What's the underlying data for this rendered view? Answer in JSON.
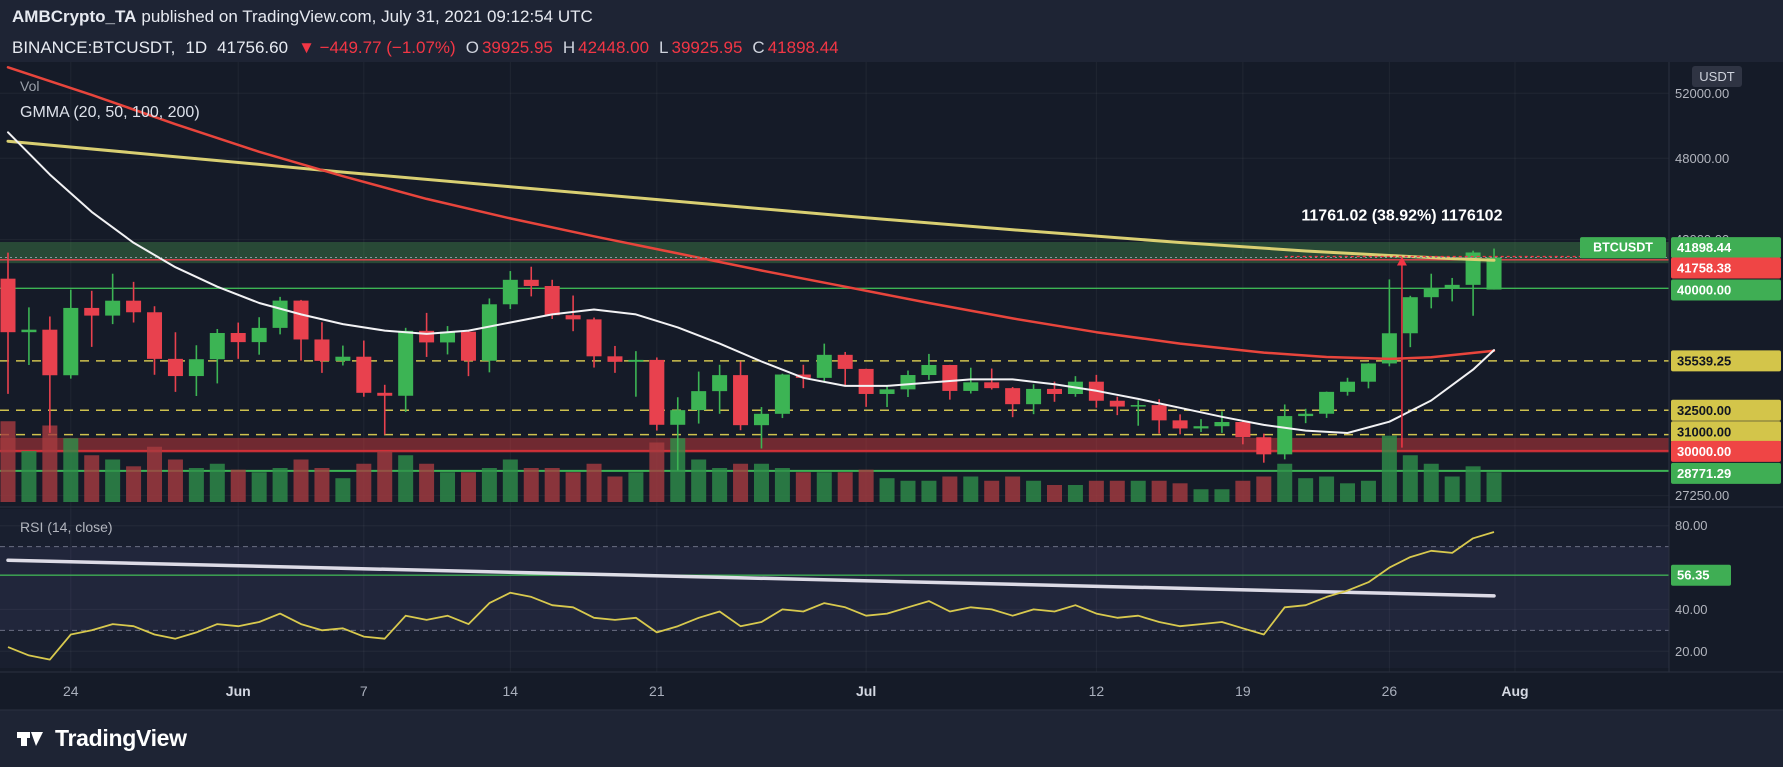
{
  "header": {
    "attribution": {
      "author": "AMBCrypto_TA",
      "rest": "published on TradingView.com, July 31, 2021 09:12:54 UTC"
    },
    "symbol_line": {
      "symbol": "BINANCE:BTCUSDT,",
      "interval": "1D",
      "last_price": "41756.60",
      "change": "▼ −449.77 (−1.07%)",
      "ohlc": [
        {
          "label": "O",
          "value": "39925.95"
        },
        {
          "label": "H",
          "value": "42448.00"
        },
        {
          "label": "L",
          "value": "39925.95"
        },
        {
          "label": "C",
          "value": "41898.44"
        }
      ]
    }
  },
  "overlays": {
    "volume_label": "Vol",
    "gmma_label": "GMMA (20, 50, 100, 200)",
    "rsi_label": "RSI (14, close)"
  },
  "axis": {
    "currency_chip": "USDT",
    "symbol_chip": "BTCUSDT",
    "plain_labels": [
      {
        "text": "52000.00",
        "price": 52000
      },
      {
        "text": "48000.00",
        "price": 48000
      },
      {
        "text": "43000.00",
        "price": 43000
      },
      {
        "text": "27250.00",
        "price": 27250
      }
    ],
    "badges": [
      {
        "text": "41898.44",
        "price": 41898.44,
        "bg": "green",
        "symbol_chip": true
      },
      {
        "text": "41758.38",
        "price": 41758.38,
        "bg": "red"
      },
      {
        "text": "40000.00",
        "price": 40000,
        "bg": "green"
      },
      {
        "text": "35539.25",
        "price": 35539.25,
        "bg": "yellow"
      },
      {
        "text": "32500.00",
        "price": 32500,
        "bg": "yellow"
      },
      {
        "text": "31000.00",
        "price": 31000,
        "bg": "yellow"
      },
      {
        "text": "30000.00",
        "price": 30000,
        "bg": "red"
      },
      {
        "text": "28771.29",
        "price": 28771.29,
        "bg": "green"
      }
    ],
    "rsi_plain": [
      {
        "text": "80.00",
        "value": 80
      },
      {
        "text": "40.00",
        "value": 40
      },
      {
        "text": "20.00",
        "value": 20
      }
    ],
    "rsi_badge": {
      "text": "56.35",
      "value": 56.35,
      "bg": "green"
    }
  },
  "x_axis": {
    "labels": [
      {
        "text": "24",
        "i": 3,
        "major": false
      },
      {
        "text": "Jun",
        "i": 11,
        "major": true
      },
      {
        "text": "7",
        "i": 17,
        "major": false
      },
      {
        "text": "14",
        "i": 24,
        "major": false
      },
      {
        "text": "21",
        "i": 31,
        "major": false
      },
      {
        "text": "Jul",
        "i": 41,
        "major": true
      },
      {
        "text": "12",
        "i": 52,
        "major": false
      },
      {
        "text": "19",
        "i": 59,
        "major": false
      },
      {
        "text": "26",
        "i": 66,
        "major": false
      },
      {
        "text": "Aug",
        "i": 72,
        "major": true
      }
    ]
  },
  "footer": {
    "brand": "TradingView"
  },
  "colors": {
    "bg_chart": "#151b28",
    "bg_frame": "#1e2434",
    "grid": "rgba(255,255,255,0.05)",
    "separator": "#2a3040",
    "axis_text": "#b2b5be",
    "candle_up": "#3cb454",
    "candle_down": "#e8414e",
    "vol_up": "#2e8e4a",
    "vol_down": "#a63b40",
    "ma_long": "#d9cf72",
    "ma_mid": "#e8453c",
    "ma_short": "#f2f2f4",
    "badge_green": "#3fae54",
    "badge_red": "#ef4545",
    "badge_yellow": "#d3c54a",
    "measure_red": "#f23645",
    "rsi_line": "#d8c94e",
    "rsi_trend": "#e8e5f0",
    "last_price_dotted": "#8b93a0"
  },
  "chart_data": {
    "type": "candlestick",
    "symbol": "BTCUSDT",
    "exchange": "BINANCE",
    "interval": "1D",
    "start_date": "2021-05-21",
    "price_axis": {
      "max": 53800,
      "min": 26674
    },
    "rsi_axis": {
      "max": 88,
      "min": 12
    },
    "grid_prices": [
      52000,
      48000,
      43000,
      27250
    ],
    "candles": [
      [
        40596,
        42199,
        33513,
        37304,
        95
      ],
      [
        37304,
        38831,
        35287,
        37458,
        60
      ],
      [
        37458,
        38270,
        31111,
        34655,
        90
      ],
      [
        34655,
        39920,
        34445,
        38796,
        75
      ],
      [
        38796,
        39850,
        36400,
        38324,
        55
      ],
      [
        38324,
        40900,
        37800,
        39241,
        50
      ],
      [
        39241,
        40400,
        37900,
        38529,
        42
      ],
      [
        38529,
        38900,
        34684,
        35663,
        65
      ],
      [
        35663,
        37300,
        33632,
        34605,
        50
      ],
      [
        34605,
        36500,
        33379,
        35641,
        40
      ],
      [
        35641,
        37499,
        34153,
        37253,
        45
      ],
      [
        37253,
        37895,
        35666,
        36693,
        38
      ],
      [
        36693,
        38225,
        35920,
        37568,
        35
      ],
      [
        37568,
        39476,
        37170,
        39246,
        40
      ],
      [
        39246,
        39289,
        35555,
        36856,
        50
      ],
      [
        36856,
        37917,
        34800,
        35538,
        40
      ],
      [
        35538,
        36480,
        35255,
        35795,
        28
      ],
      [
        35795,
        36790,
        33333,
        33575,
        45
      ],
      [
        33575,
        34068,
        31000,
        33393,
        60
      ],
      [
        33393,
        37572,
        32396,
        37388,
        55
      ],
      [
        37388,
        38491,
        35782,
        36675,
        45
      ],
      [
        36675,
        37680,
        35936,
        37332,
        35
      ],
      [
        37332,
        37445,
        34600,
        35546,
        35
      ],
      [
        35546,
        39380,
        34833,
        39020,
        40
      ],
      [
        39020,
        41064,
        38730,
        40525,
        50
      ],
      [
        40525,
        41330,
        39506,
        40144,
        40
      ],
      [
        40144,
        40527,
        38116,
        38349,
        40
      ],
      [
        38349,
        39559,
        37365,
        38092,
        35
      ],
      [
        38092,
        38202,
        35129,
        35819,
        45
      ],
      [
        35819,
        36457,
        34803,
        35483,
        30
      ],
      [
        35483,
        36137,
        33336,
        35600,
        35
      ],
      [
        35600,
        35750,
        31251,
        31608,
        70
      ],
      [
        31608,
        33298,
        28805,
        32509,
        75
      ],
      [
        32509,
        34881,
        31683,
        33678,
        50
      ],
      [
        33678,
        35298,
        32286,
        34663,
        40
      ],
      [
        34663,
        35500,
        31275,
        31584,
        45
      ],
      [
        31584,
        32700,
        30151,
        32283,
        45
      ],
      [
        32283,
        34749,
        32022,
        34700,
        40
      ],
      [
        34700,
        35301,
        33862,
        34494,
        35
      ],
      [
        34494,
        36600,
        34225,
        35911,
        35
      ],
      [
        35911,
        36088,
        34049,
        35045,
        35
      ],
      [
        35045,
        35057,
        32711,
        33504,
        38
      ],
      [
        33504,
        33977,
        32699,
        33786,
        28
      ],
      [
        33786,
        34945,
        33316,
        34669,
        25
      ],
      [
        34669,
        35967,
        34370,
        35286,
        25
      ],
      [
        35286,
        35293,
        33155,
        33690,
        30
      ],
      [
        33690,
        35119,
        33532,
        34220,
        30
      ],
      [
        34220,
        35067,
        33777,
        33862,
        25
      ],
      [
        33862,
        33929,
        32077,
        32875,
        30
      ],
      [
        32875,
        34100,
        32261,
        33815,
        25
      ],
      [
        33815,
        34262,
        33022,
        33502,
        20
      ],
      [
        33502,
        34600,
        33333,
        34259,
        20
      ],
      [
        34259,
        34678,
        32658,
        33086,
        25
      ],
      [
        33086,
        33340,
        32202,
        32729,
        25
      ],
      [
        32729,
        33114,
        31550,
        32820,
        25
      ],
      [
        32820,
        33185,
        31064,
        31880,
        25
      ],
      [
        31880,
        32249,
        31020,
        31383,
        22
      ],
      [
        31383,
        31955,
        31164,
        31520,
        15
      ],
      [
        31520,
        32435,
        31108,
        31778,
        15
      ],
      [
        31778,
        31890,
        30407,
        30839,
        25
      ],
      [
        30839,
        31063,
        29278,
        29790,
        30
      ],
      [
        29790,
        32858,
        29482,
        32144,
        45
      ],
      [
        32144,
        32591,
        31708,
        32287,
        28
      ],
      [
        32287,
        33650,
        32030,
        33634,
        30
      ],
      [
        33634,
        34500,
        33401,
        34258,
        22
      ],
      [
        34258,
        35398,
        33851,
        35381,
        25
      ],
      [
        35381,
        40550,
        35205,
        37237,
        78
      ],
      [
        37237,
        39542,
        36383,
        39457,
        55
      ],
      [
        39457,
        40900,
        38772,
        40019,
        45
      ],
      [
        40019,
        40640,
        39200,
        40216,
        30
      ],
      [
        40216,
        42316,
        38313,
        42206,
        42
      ],
      [
        39926,
        42448,
        39926,
        41898,
        35
      ]
    ],
    "ma_lines": [
      {
        "name": "gmma-long",
        "color_key": "ma_long",
        "width": 3,
        "points": [
          [
            0,
            49050
          ],
          [
            8,
            48100
          ],
          [
            16,
            47150
          ],
          [
            24,
            46250
          ],
          [
            32,
            45350
          ],
          [
            40,
            44450
          ],
          [
            48,
            43600
          ],
          [
            56,
            42820
          ],
          [
            62,
            42300
          ],
          [
            66,
            42020
          ],
          [
            69,
            41830
          ],
          [
            71,
            41730
          ]
        ]
      },
      {
        "name": "gmma-mid",
        "color_key": "ma_mid",
        "width": 2.5,
        "points": [
          [
            0,
            53600
          ],
          [
            4,
            51900
          ],
          [
            8,
            50100
          ],
          [
            12,
            48400
          ],
          [
            16,
            46900
          ],
          [
            20,
            45500
          ],
          [
            24,
            44300
          ],
          [
            28,
            43200
          ],
          [
            32,
            42150
          ],
          [
            36,
            41100
          ],
          [
            40,
            40100
          ],
          [
            44,
            39100
          ],
          [
            48,
            38150
          ],
          [
            52,
            37300
          ],
          [
            56,
            36600
          ],
          [
            60,
            36050
          ],
          [
            63,
            35780
          ],
          [
            66,
            35660
          ],
          [
            68,
            35760
          ],
          [
            71,
            36160
          ]
        ]
      },
      {
        "name": "gmma-short",
        "color_key": "ma_short",
        "width": 2,
        "points": [
          [
            0,
            49600
          ],
          [
            2,
            47000
          ],
          [
            4,
            44700
          ],
          [
            6,
            42800
          ],
          [
            8,
            41300
          ],
          [
            10,
            40100
          ],
          [
            12,
            39100
          ],
          [
            14,
            38400
          ],
          [
            16,
            37800
          ],
          [
            18,
            37400
          ],
          [
            20,
            37200
          ],
          [
            22,
            37400
          ],
          [
            24,
            37900
          ],
          [
            26,
            38400
          ],
          [
            28,
            38700
          ],
          [
            30,
            38400
          ],
          [
            32,
            37600
          ],
          [
            34,
            36600
          ],
          [
            36,
            35500
          ],
          [
            38,
            34500
          ],
          [
            40,
            34000
          ],
          [
            42,
            34000
          ],
          [
            44,
            34200
          ],
          [
            46,
            34400
          ],
          [
            48,
            34400
          ],
          [
            50,
            34100
          ],
          [
            52,
            33700
          ],
          [
            54,
            33200
          ],
          [
            56,
            32650
          ],
          [
            58,
            32100
          ],
          [
            60,
            31600
          ],
          [
            62,
            31250
          ],
          [
            64,
            31100
          ],
          [
            66,
            31800
          ],
          [
            68,
            33100
          ],
          [
            70,
            35000
          ],
          [
            71,
            36200
          ]
        ]
      }
    ],
    "levels": [
      {
        "type": "band",
        "from": 42850,
        "to": 41550,
        "color": "rgba(76,160,80,0.35)"
      },
      {
        "type": "line",
        "price": 41758.38,
        "color": "#e8414e",
        "width": 1.4,
        "style": "solid"
      },
      {
        "type": "line",
        "price": 40000,
        "color": "#3cb454",
        "width": 1.4,
        "style": "solid"
      },
      {
        "type": "line",
        "price": 35539.25,
        "color": "#cfc14e",
        "width": 1.5,
        "style": "dashed"
      },
      {
        "type": "line",
        "price": 32500,
        "color": "#cfc14e",
        "width": 1.5,
        "style": "dashed"
      },
      {
        "type": "line",
        "price": 31000,
        "color": "#cfc14e",
        "width": 1.5,
        "style": "dashed"
      },
      {
        "type": "band",
        "from": 30800,
        "to": 29900,
        "color": "rgba(224,60,60,0.45)"
      },
      {
        "type": "line",
        "price": 30000,
        "color": "#d03038",
        "width": 2,
        "style": "solid"
      },
      {
        "type": "line",
        "price": 28771.29,
        "color": "#3cb454",
        "width": 2,
        "style": "solid"
      }
    ],
    "last_price_line": {
      "price": 41898.44
    },
    "measurement": {
      "label": "11761.02 (38.92%) 1176102",
      "from_price": 30200,
      "to_price": 41961,
      "index": 66.6,
      "line_start_index": 61
    },
    "rsi": {
      "period": 14,
      "source": "close",
      "band_levels": [
        70,
        30
      ],
      "grid_values": [
        80,
        40,
        20
      ],
      "horizontal_line": 56.35,
      "trendline": {
        "from": [
          0,
          63.5
        ],
        "to": [
          71,
          46.5
        ]
      },
      "values": [
        22,
        18,
        16,
        28,
        30,
        33,
        32,
        28,
        26,
        29,
        33,
        32,
        34,
        38,
        33,
        30,
        31,
        27,
        26,
        37,
        35,
        37,
        33,
        43,
        48,
        46,
        42,
        41,
        36,
        35,
        36,
        29,
        32,
        36,
        39,
        32,
        34,
        40,
        39,
        43,
        41,
        37,
        38,
        41,
        44,
        39,
        41,
        40,
        37,
        40,
        39,
        42,
        38,
        36,
        37,
        34,
        32,
        33,
        34,
        31,
        28,
        41,
        42,
        46,
        49,
        53,
        60,
        65,
        68,
        67,
        74,
        77
      ]
    }
  }
}
